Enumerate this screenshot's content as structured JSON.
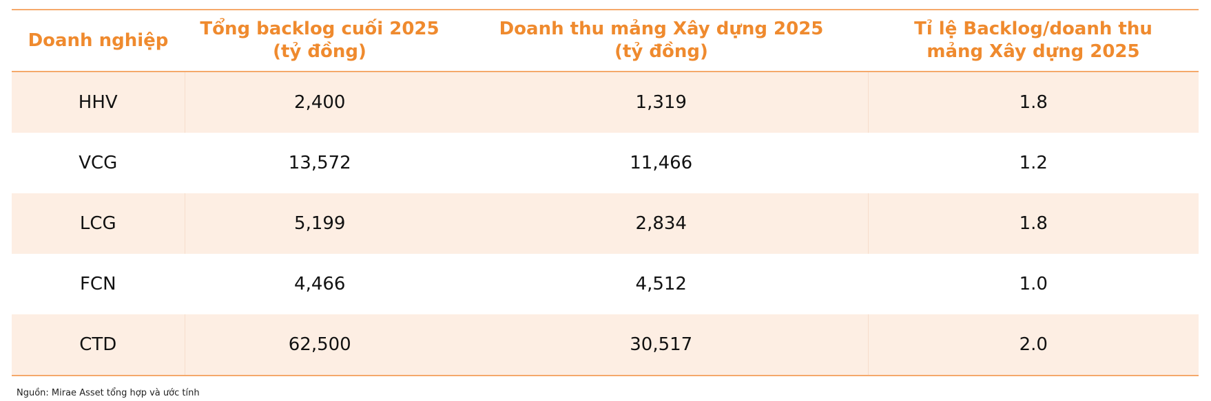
{
  "table": {
    "header": [
      "Doanh nghiệp",
      "Tổng backlog cuối 2025\n(tỷ đồng)",
      "Doanh thu mảng Xây dựng 2025\n(tỷ đồng)",
      "Tỉ lệ Backlog/doanh thu\nmảng Xây dựng 2025"
    ],
    "rows": [
      [
        "HHV",
        "2,400",
        "1,319",
        "1.8"
      ],
      [
        "VCG",
        "13,572",
        "11,466",
        "1.2"
      ],
      [
        "LCG",
        "5,199",
        "2,834",
        "1.8"
      ],
      [
        "FCN",
        "4,466",
        "4,512",
        "1.0"
      ],
      [
        "CTD",
        "62,500",
        "30,517",
        "2.0"
      ]
    ]
  },
  "footnote": "Nguồn: Mirae Asset tổng hợp và ước tính"
}
